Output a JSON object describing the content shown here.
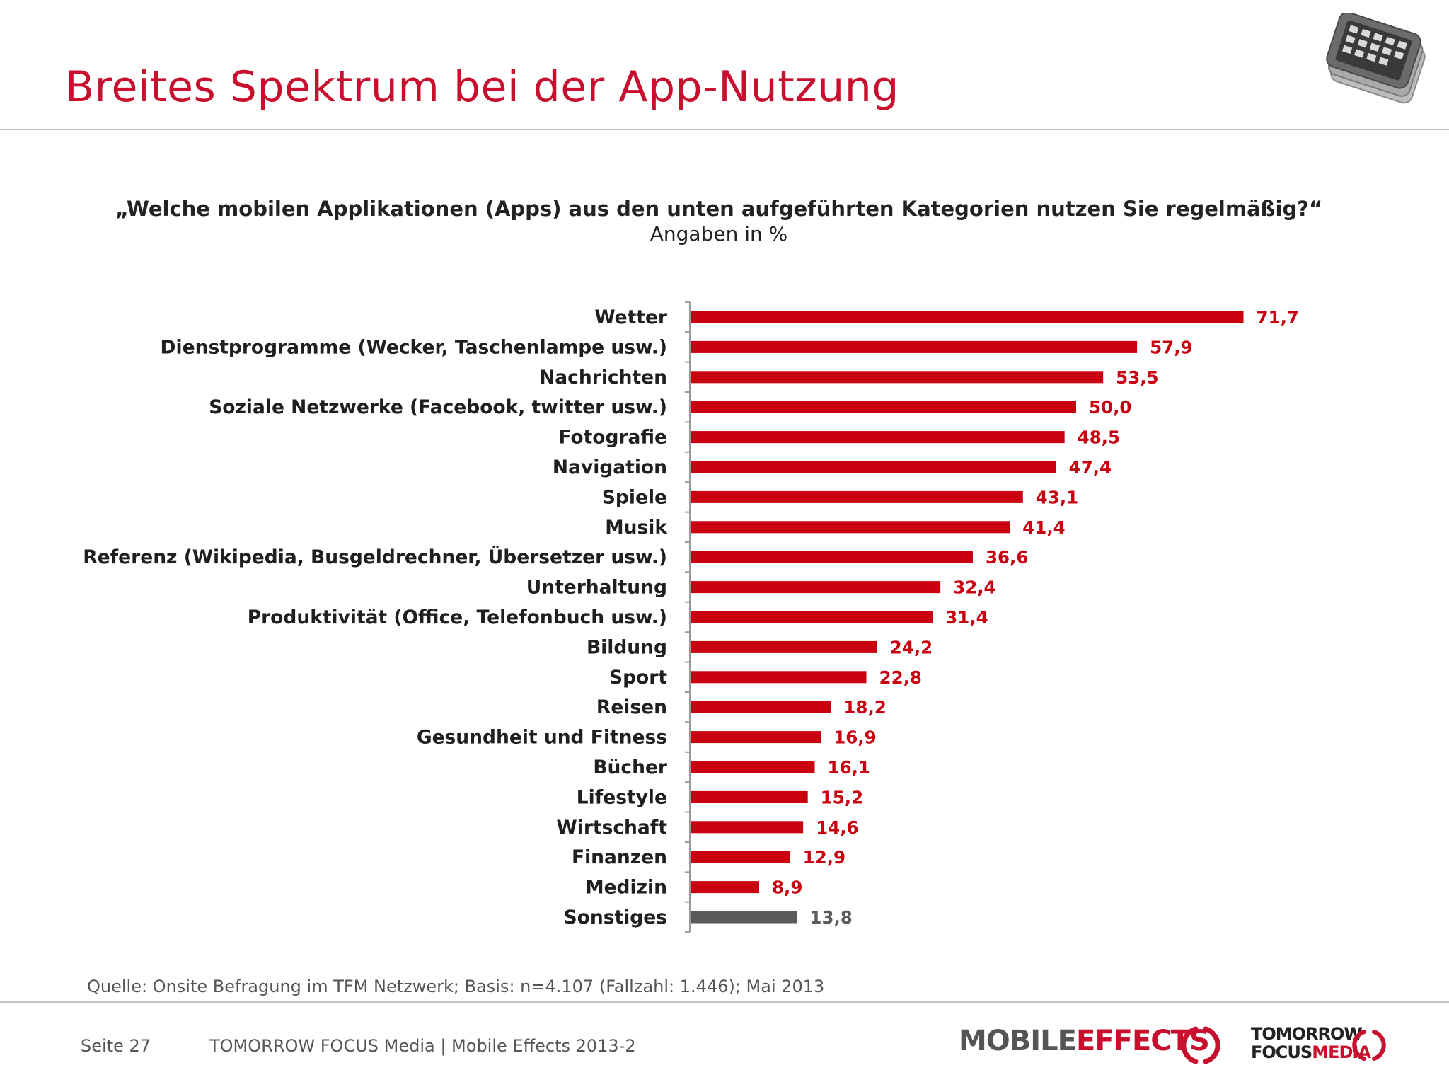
{
  "header": {
    "title": "Breites Spektrum bei der App-Nutzung",
    "icon": "smartphone-stack-icon"
  },
  "question": "„Welche mobilen Applikationen (Apps) aus den unten aufgeführten Kategorien nutzen Sie regelmäßig?“",
  "subtitle": "Angaben in %",
  "chart_data": {
    "type": "bar",
    "orientation": "horizontal",
    "categories": [
      "Wetter",
      "Dienstprogramme (Wecker, Taschenlampe usw.)",
      "Nachrichten",
      "Soziale Netzwerke (Facebook, twitter usw.)",
      "Fotografie",
      "Navigation",
      "Spiele",
      "Musik",
      "Referenz (Wikipedia, Busgeldrechner, Übersetzer usw.)",
      "Unterhaltung",
      "Produktivität (Office, Telefonbuch usw.)",
      "Bildung",
      "Sport",
      "Reisen",
      "Gesundheit und Fitness",
      "Bücher",
      "Lifestyle",
      "Wirtschaft",
      "Finanzen",
      "Medizin",
      "Sonstiges"
    ],
    "values": [
      71.7,
      57.9,
      53.5,
      50.0,
      48.5,
      47.4,
      43.1,
      41.4,
      36.6,
      32.4,
      31.4,
      24.2,
      22.8,
      18.2,
      16.9,
      16.1,
      15.2,
      14.6,
      12.9,
      8.9,
      13.8
    ],
    "value_labels": [
      "71,7",
      "57,9",
      "53,5",
      "50,0",
      "48,5",
      "47,4",
      "43,1",
      "41,4",
      "36,6",
      "32,4",
      "31,4",
      "24,2",
      "22,8",
      "18,2",
      "16,9",
      "16,1",
      "15,2",
      "14,6",
      "12,9",
      "8,9",
      "13,8"
    ],
    "colors": {
      "default": "#c8000f",
      "Sonstiges": "#5a5a5a"
    },
    "xlim": [
      0,
      80
    ],
    "grid": false,
    "legend": "none"
  },
  "source": "Quelle: Onsite Befragung im TFM Netzwerk; Basis: n=4.107 (Fallzahl: 1.446); Mai 2013",
  "footer": {
    "page": "Seite 27",
    "text": "TOMORROW FOCUS Media  |  Mobile Effects 2013-2",
    "logo_mobile_effects": {
      "word1": "MOBILE",
      "word2": "EFFECTS"
    },
    "logo_tfm": {
      "line1": "TOMORROW",
      "line2a": "FOCUS",
      "line2b": "MEDIA"
    }
  }
}
